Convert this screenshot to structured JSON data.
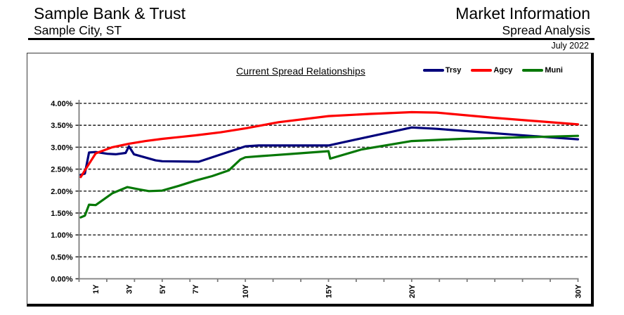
{
  "header": {
    "left": {
      "title": "Sample Bank & Trust",
      "subtitle": "Sample City, ST"
    },
    "right": {
      "title": "Market Information",
      "subtitle": "Spread Analysis"
    },
    "date": "July 2022"
  },
  "chart_data": {
    "type": "line",
    "title": "Current Spread Relationships",
    "grid": "horizontal-dashed",
    "legend_position": "top-right",
    "x_axis": {
      "unit": "maturity-years",
      "range_years": [
        0,
        30
      ],
      "tick_labels": [
        "1Y",
        "3Y",
        "5Y",
        "7Y",
        "10Y",
        "15Y",
        "20Y",
        "30Y"
      ],
      "tick_years": [
        1,
        3,
        5,
        7,
        10,
        15,
        20,
        30
      ],
      "label_rotation_deg": -90
    },
    "y_axis": {
      "min": 0,
      "max": 4,
      "step": 0.5,
      "format": "percent",
      "tick_labels": [
        "4.00%",
        "3.50%",
        "3.00%",
        "2.50%",
        "2.00%",
        "1.50%",
        "1.00%",
        "0.50%",
        "0.00%"
      ]
    },
    "series": [
      {
        "name": "Trsy",
        "color": "#00007B",
        "points": [
          [
            0.1,
            2.37
          ],
          [
            0.35,
            2.4
          ],
          [
            0.6,
            2.88
          ],
          [
            1,
            2.89
          ],
          [
            1.7,
            2.85
          ],
          [
            2.2,
            2.84
          ],
          [
            2.8,
            2.87
          ],
          [
            3,
            3.02
          ],
          [
            3.3,
            2.84
          ],
          [
            4.6,
            2.7
          ],
          [
            5,
            2.68
          ],
          [
            7.2,
            2.67
          ],
          [
            10,
            3.02
          ],
          [
            10.8,
            3.04
          ],
          [
            15,
            3.04
          ],
          [
            20,
            3.45
          ],
          [
            21.5,
            3.42
          ],
          [
            26,
            3.29
          ],
          [
            30,
            3.18
          ]
        ]
      },
      {
        "name": "Agcy",
        "color": "#FE0000",
        "points": [
          [
            0.1,
            2.32
          ],
          [
            0.5,
            2.56
          ],
          [
            1,
            2.86
          ],
          [
            2,
            3.0
          ],
          [
            3,
            3.08
          ],
          [
            4,
            3.14
          ],
          [
            5,
            3.19
          ],
          [
            7,
            3.27
          ],
          [
            8.5,
            3.34
          ],
          [
            10,
            3.43
          ],
          [
            12,
            3.57
          ],
          [
            15,
            3.71
          ],
          [
            17.5,
            3.76
          ],
          [
            20,
            3.8
          ],
          [
            21.5,
            3.79
          ],
          [
            25,
            3.67
          ],
          [
            30,
            3.52
          ]
        ]
      },
      {
        "name": "Muni",
        "color": "#067806",
        "points": [
          [
            0.1,
            1.4
          ],
          [
            0.35,
            1.44
          ],
          [
            0.6,
            1.69
          ],
          [
            1,
            1.68
          ],
          [
            2,
            1.95
          ],
          [
            2.9,
            2.09
          ],
          [
            3.6,
            2.04
          ],
          [
            4.2,
            2.0
          ],
          [
            5,
            2.01
          ],
          [
            6,
            2.12
          ],
          [
            7,
            2.24
          ],
          [
            8,
            2.34
          ],
          [
            9,
            2.47
          ],
          [
            9.7,
            2.72
          ],
          [
            10,
            2.77
          ],
          [
            11,
            2.8
          ],
          [
            12.5,
            2.84
          ],
          [
            15,
            2.91
          ],
          [
            15.1,
            2.74
          ],
          [
            17,
            2.95
          ],
          [
            20,
            3.14
          ],
          [
            23,
            3.19
          ],
          [
            26,
            3.22
          ],
          [
            30,
            3.26
          ]
        ]
      }
    ]
  }
}
